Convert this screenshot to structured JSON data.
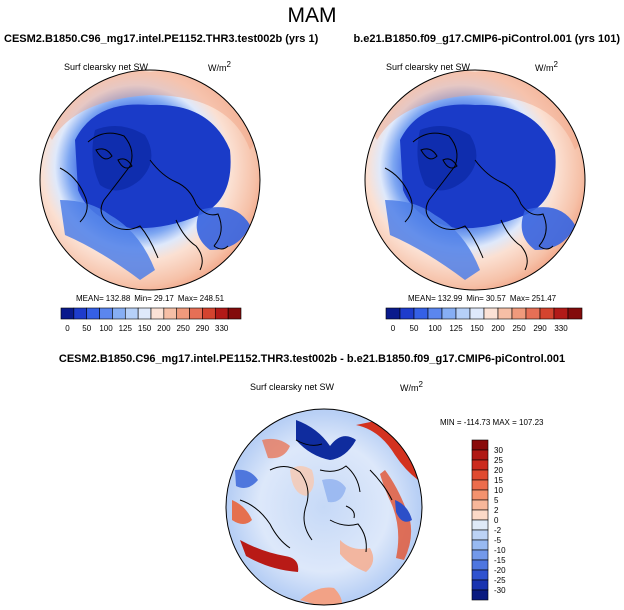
{
  "figure_title": "MAM",
  "panels": [
    {
      "case_title": "CESM2.B1850.C96_mg17.intel.PE1152.THR3.test002b (yrs 1)",
      "variable": "Surf clearsky net SW",
      "units": "W/m",
      "units_exp": "2",
      "stats": {
        "mean_label": "MEAN=",
        "mean": "132.88",
        "min_label": "Min=",
        "min": "29.17",
        "max_label": "Max=",
        "max": "248.51"
      }
    },
    {
      "case_title": "b.e21.B1850.f09_g17.CMIP6-piControl.001 (yrs 101)",
      "variable": "Surf clearsky net SW",
      "units": "W/m",
      "units_exp": "2",
      "stats": {
        "mean_label": "MEAN=",
        "mean": "132.99",
        "min_label": "Min=",
        "min": "30.57",
        "max_label": "Max=",
        "max": "251.47"
      }
    }
  ],
  "diff_panel": {
    "case_title": "CESM2.B1850.C96_mg17.intel.PE1152.THR3.test002b - b.e21.B1850.f09_g17.CMIP6-piControl.001",
    "variable": "Surf clearsky net SW",
    "units": "W/m",
    "units_exp": "2",
    "stats_text": "MIN = -114.73 MAX = 107.23"
  },
  "chart_data": [
    {
      "type": "heatmap",
      "projection": "north-polar-stereographic",
      "title": "Surf clearsky net SW",
      "colorbar_levels": [
        "0",
        "50",
        "100",
        "125",
        "150",
        "200",
        "250",
        "290",
        "330"
      ],
      "colorbar_colors": [
        "#0a1a8c",
        "#1e3ccc",
        "#3560e6",
        "#5b86ef",
        "#86aef4",
        "#b6d0f8",
        "#dfe9fb",
        "#fbe2d6",
        "#f6bfa6",
        "#f09a7c",
        "#e66f56",
        "#d4442f",
        "#b21a18",
        "#830b0b"
      ]
    },
    {
      "type": "heatmap",
      "projection": "north-polar-stereographic",
      "title": "Surf clearsky net SW",
      "colorbar_levels": [
        "0",
        "50",
        "100",
        "125",
        "150",
        "200",
        "250",
        "290",
        "330"
      ],
      "colorbar_colors": [
        "#0a1a8c",
        "#1e3ccc",
        "#3560e6",
        "#5b86ef",
        "#86aef4",
        "#b6d0f8",
        "#dfe9fb",
        "#fbe2d6",
        "#f6bfa6",
        "#f09a7c",
        "#e66f56",
        "#d4442f",
        "#b21a18",
        "#830b0b"
      ]
    },
    {
      "type": "heatmap",
      "projection": "north-polar-stereographic",
      "title": "Surf clearsky net SW",
      "colorbar_levels": [
        "30",
        "25",
        "20",
        "15",
        "10",
        "5",
        "2",
        "0",
        "-2",
        "-5",
        "-10",
        "-15",
        "-20",
        "-25",
        "-30"
      ],
      "colorbar_colors": [
        "#8a0a0a",
        "#b01814",
        "#cc2a1e",
        "#e04a30",
        "#ec6c4c",
        "#f4926e",
        "#f8b79a",
        "#fbd9c7",
        "#dfeaf8",
        "#bcd3f6",
        "#98baf2",
        "#7399ea",
        "#4e76e0",
        "#2f52cf",
        "#1a34b0",
        "#0a1a80"
      ]
    }
  ]
}
